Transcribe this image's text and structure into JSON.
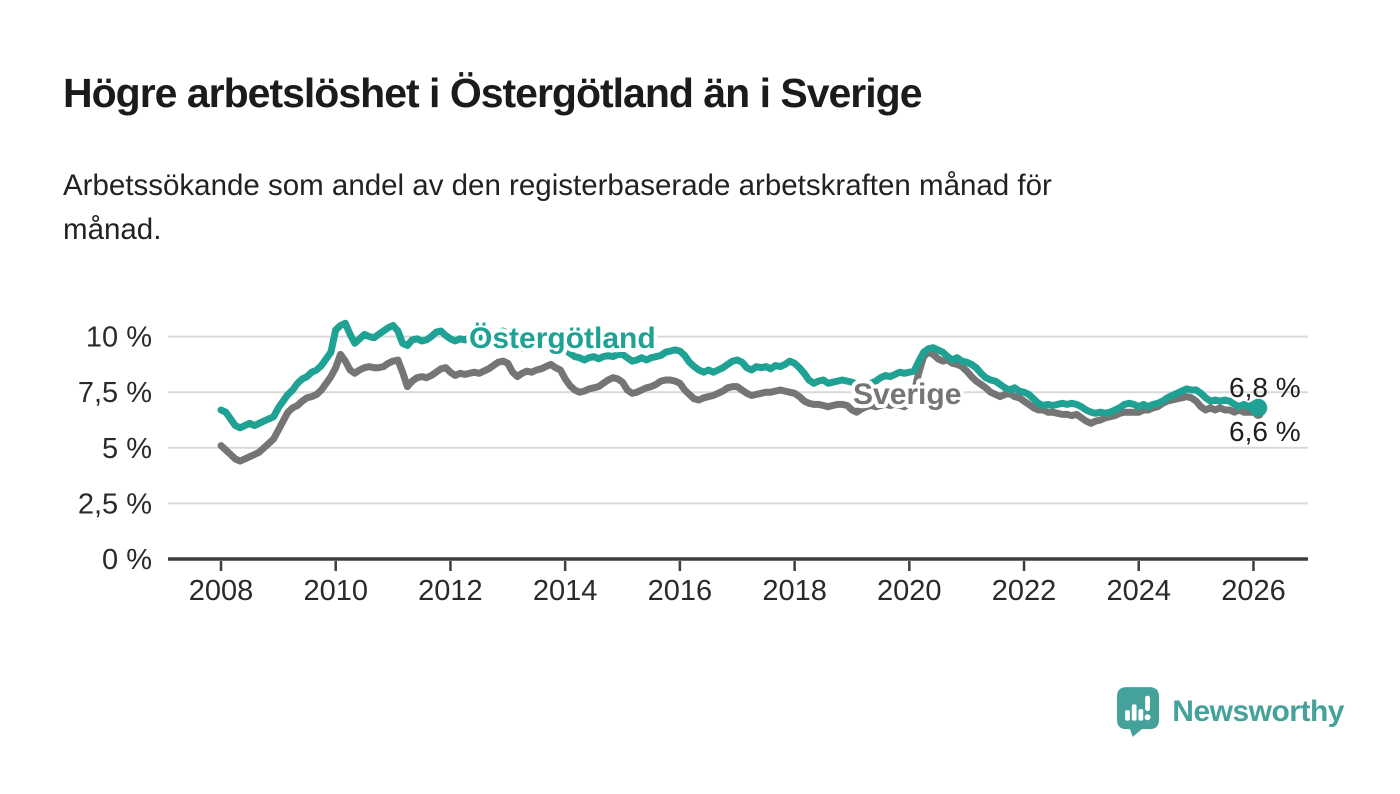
{
  "branding": {
    "name": "Newsworthy",
    "icon": "newsworthy-chart-bubble-icon",
    "color": "#45a29b"
  },
  "chart_data": {
    "type": "line",
    "title": "Högre arbetslöshet i Östergötland än i Sverige",
    "subtitle_lines": [
      "Arbetssökande som andel av den registerbaserade arbetskraften månad för",
      "månad."
    ],
    "x_unit": "month",
    "x_start": "2008-01",
    "x_end": "2026-02",
    "x_ticks": [
      2008,
      2010,
      2012,
      2014,
      2016,
      2018,
      2020,
      2022,
      2024,
      2026
    ],
    "y_ticks": [
      {
        "value": 10,
        "label": "10 %"
      },
      {
        "value": 7.5,
        "label": "7,5 %"
      },
      {
        "value": 5,
        "label": "5 %"
      },
      {
        "value": 2.5,
        "label": "2,5 %"
      },
      {
        "value": 0,
        "label": "0 %"
      }
    ],
    "ylim": [
      0,
      11.2
    ],
    "grid": "horizontal",
    "legend_position": "inline-labels",
    "series": [
      {
        "name": "Östergötland",
        "color": "#1fa294",
        "end_label": "6,8 %",
        "end_value": 6.8,
        "end_dot": true,
        "values": [
          6.7,
          6.6,
          6.3,
          6.0,
          5.9,
          6.0,
          6.1,
          6.0,
          6.1,
          6.2,
          6.3,
          6.4,
          6.8,
          7.1,
          7.4,
          7.6,
          7.9,
          8.1,
          8.2,
          8.4,
          8.5,
          8.7,
          9.0,
          9.3,
          10.3,
          10.5,
          10.6,
          10.1,
          9.7,
          9.9,
          10.1,
          10.0,
          9.95,
          10.1,
          10.25,
          10.4,
          10.5,
          10.25,
          9.7,
          9.6,
          9.85,
          9.9,
          9.8,
          9.85,
          10.0,
          10.2,
          10.25,
          10.05,
          9.9,
          9.8,
          9.9,
          9.85,
          9.95,
          10.0,
          9.95,
          10.05,
          10.0,
          10.1,
          10.2,
          10.25,
          10.15,
          9.9,
          9.55,
          9.5,
          9.65,
          9.7,
          9.6,
          9.7,
          9.75,
          9.8,
          9.7,
          9.55,
          9.4,
          9.25,
          9.1,
          9.05,
          8.95,
          9.05,
          9.1,
          9.0,
          9.1,
          9.15,
          9.1,
          9.2,
          9.2,
          9.05,
          8.9,
          8.95,
          9.05,
          8.95,
          9.05,
          9.1,
          9.15,
          9.3,
          9.35,
          9.4,
          9.35,
          9.15,
          8.85,
          8.65,
          8.5,
          8.4,
          8.5,
          8.4,
          8.5,
          8.6,
          8.75,
          8.9,
          8.95,
          8.85,
          8.6,
          8.5,
          8.65,
          8.6,
          8.65,
          8.55,
          8.7,
          8.65,
          8.75,
          8.9,
          8.8,
          8.6,
          8.35,
          8.05,
          7.9,
          8.0,
          8.05,
          7.9,
          7.95,
          8.0,
          8.05,
          8.0,
          7.95,
          7.85,
          7.8,
          7.85,
          7.9,
          8.0,
          8.15,
          8.25,
          8.2,
          8.3,
          8.4,
          8.35,
          8.4,
          8.45,
          8.9,
          9.3,
          9.45,
          9.5,
          9.4,
          9.3,
          9.1,
          8.95,
          9.05,
          8.9,
          8.85,
          8.75,
          8.6,
          8.35,
          8.15,
          8.05,
          8.0,
          7.85,
          7.7,
          7.6,
          7.7,
          7.55,
          7.5,
          7.4,
          7.2,
          7.0,
          6.9,
          6.95,
          6.9,
          6.95,
          7.0,
          6.95,
          7.0,
          6.95,
          6.85,
          6.7,
          6.6,
          6.55,
          6.6,
          6.55,
          6.6,
          6.7,
          6.8,
          6.95,
          7.0,
          6.95,
          6.85,
          6.95,
          6.85,
          6.95,
          7.0,
          7.1,
          7.25,
          7.35,
          7.45,
          7.55,
          7.65,
          7.6,
          7.6,
          7.45,
          7.25,
          7.1,
          7.15,
          7.1,
          7.15,
          7.1,
          6.95,
          6.85,
          6.95,
          6.85,
          6.95,
          6.8
        ]
      },
      {
        "name": "Sverige",
        "color": "#757575",
        "end_label": "6,6 %",
        "end_value": 6.6,
        "end_dot": true,
        "values": [
          5.1,
          4.9,
          4.7,
          4.5,
          4.4,
          4.5,
          4.6,
          4.7,
          4.8,
          5.0,
          5.2,
          5.4,
          5.8,
          6.2,
          6.6,
          6.8,
          6.9,
          7.1,
          7.25,
          7.3,
          7.4,
          7.6,
          7.9,
          8.2,
          8.6,
          9.2,
          8.9,
          8.5,
          8.35,
          8.5,
          8.6,
          8.65,
          8.6,
          8.6,
          8.65,
          8.8,
          8.9,
          8.95,
          8.4,
          7.75,
          8.0,
          8.15,
          8.2,
          8.15,
          8.25,
          8.4,
          8.55,
          8.6,
          8.4,
          8.25,
          8.35,
          8.3,
          8.35,
          8.4,
          8.35,
          8.45,
          8.55,
          8.7,
          8.85,
          8.9,
          8.8,
          8.4,
          8.2,
          8.35,
          8.45,
          8.4,
          8.5,
          8.55,
          8.65,
          8.75,
          8.6,
          8.5,
          8.1,
          7.8,
          7.6,
          7.5,
          7.55,
          7.65,
          7.7,
          7.75,
          7.9,
          8.05,
          8.15,
          8.1,
          7.95,
          7.6,
          7.45,
          7.5,
          7.6,
          7.7,
          7.75,
          7.85,
          8.0,
          8.05,
          8.05,
          8.0,
          7.9,
          7.6,
          7.4,
          7.2,
          7.15,
          7.25,
          7.3,
          7.35,
          7.45,
          7.55,
          7.7,
          7.75,
          7.75,
          7.6,
          7.45,
          7.35,
          7.4,
          7.45,
          7.5,
          7.5,
          7.55,
          7.6,
          7.55,
          7.5,
          7.45,
          7.3,
          7.1,
          7.0,
          6.95,
          6.95,
          6.9,
          6.85,
          6.9,
          6.95,
          6.95,
          6.9,
          6.7,
          6.6,
          6.75,
          6.85,
          6.9,
          6.85,
          6.9,
          6.95,
          6.9,
          6.95,
          6.9,
          6.85,
          7.0,
          7.5,
          8.4,
          9.1,
          9.3,
          9.2,
          9.0,
          8.9,
          8.95,
          8.8,
          8.75,
          8.65,
          8.45,
          8.2,
          8.0,
          7.85,
          7.7,
          7.5,
          7.4,
          7.3,
          7.4,
          7.45,
          7.3,
          7.25,
          7.1,
          6.95,
          6.8,
          6.7,
          6.7,
          6.6,
          6.6,
          6.55,
          6.5,
          6.5,
          6.45,
          6.5,
          6.35,
          6.2,
          6.1,
          6.2,
          6.25,
          6.35,
          6.4,
          6.45,
          6.55,
          6.6,
          6.6,
          6.6,
          6.6,
          6.7,
          6.7,
          6.8,
          6.85,
          7.0,
          7.1,
          7.15,
          7.2,
          7.25,
          7.3,
          7.25,
          7.1,
          6.85,
          6.7,
          6.8,
          6.7,
          6.8,
          6.7,
          6.7,
          6.6,
          6.7,
          6.6,
          6.6,
          6.6,
          6.55
        ]
      }
    ]
  }
}
